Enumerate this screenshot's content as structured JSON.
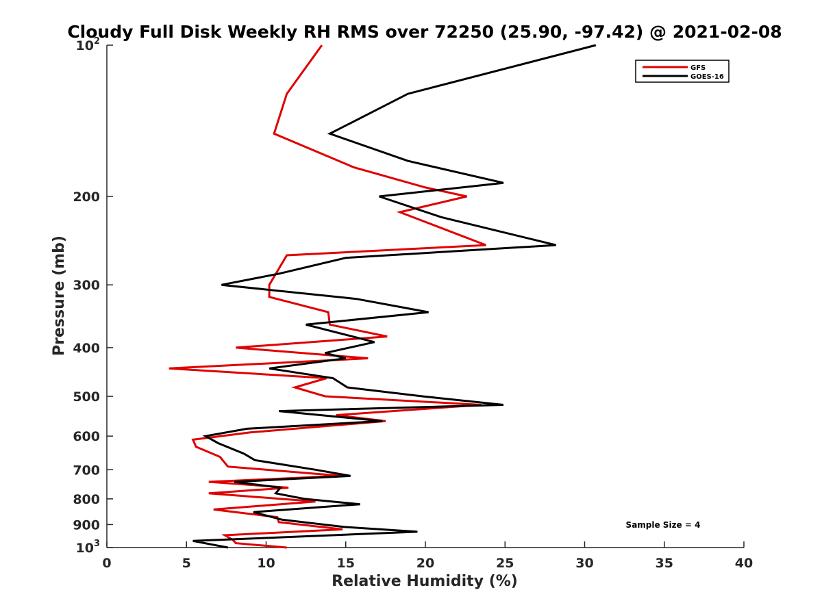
{
  "chart_data": {
    "type": "line",
    "title": "Cloudy Full Disk Weekly RH RMS over 72250 (25.90, -97.42) @ 2021-02-08",
    "xlabel": "Relative Humidity (%)",
    "ylabel": "Pressure (mb)",
    "xlim": [
      0,
      40
    ],
    "ylim": [
      100,
      1000
    ],
    "y_scale": "log",
    "y_reversed": true,
    "x_ticks": [
      0,
      5,
      10,
      15,
      20,
      25,
      30,
      35,
      40
    ],
    "y_ticks": [
      {
        "value": 100,
        "label": "10",
        "sup": "2"
      },
      {
        "value": 200,
        "label": "200",
        "sup": ""
      },
      {
        "value": 300,
        "label": "300",
        "sup": ""
      },
      {
        "value": 400,
        "label": "400",
        "sup": ""
      },
      {
        "value": 500,
        "label": "500",
        "sup": ""
      },
      {
        "value": 600,
        "label": "600",
        "sup": ""
      },
      {
        "value": 700,
        "label": "700",
        "sup": ""
      },
      {
        "value": 800,
        "label": "800",
        "sup": ""
      },
      {
        "value": 900,
        "label": "900",
        "sup": ""
      },
      {
        "value": 1000,
        "label": "10",
        "sup": "3"
      }
    ],
    "grid": false,
    "legend_position": "top-right",
    "annotation": "Sample Size = 4",
    "series": [
      {
        "name": "GFS",
        "color": "#e00000",
        "points": [
          [
            13.5,
            100
          ],
          [
            11.3,
            125
          ],
          [
            10.5,
            150
          ],
          [
            15.5,
            175
          ],
          [
            20.0,
            192
          ],
          [
            22.6,
            200
          ],
          [
            18.4,
            215
          ],
          [
            23.8,
            250
          ],
          [
            11.3,
            262
          ],
          [
            10.2,
            300
          ],
          [
            10.2,
            317
          ],
          [
            13.9,
            340
          ],
          [
            14.0,
            360
          ],
          [
            17.6,
            380
          ],
          [
            8.1,
            400
          ],
          [
            16.4,
            420
          ],
          [
            3.9,
            440
          ],
          [
            13.8,
            460
          ],
          [
            11.8,
            480
          ],
          [
            13.7,
            500
          ],
          [
            23.5,
            520
          ],
          [
            14.4,
            545
          ],
          [
            17.5,
            560
          ],
          [
            9.0,
            590
          ],
          [
            5.4,
            610
          ],
          [
            5.6,
            630
          ],
          [
            7.1,
            660
          ],
          [
            7.6,
            690
          ],
          [
            14.7,
            720
          ],
          [
            6.4,
            740
          ],
          [
            11.4,
            760
          ],
          [
            6.4,
            780
          ],
          [
            13.1,
            810
          ],
          [
            6.7,
            840
          ],
          [
            10.7,
            870
          ],
          [
            10.8,
            890
          ],
          [
            14.8,
            920
          ],
          [
            7.4,
            945
          ],
          [
            7.9,
            965
          ],
          [
            8.1,
            980
          ],
          [
            11.3,
            1000
          ]
        ]
      },
      {
        "name": "GOES-16",
        "color": "#000000",
        "points": [
          [
            30.7,
            100
          ],
          [
            18.9,
            125
          ],
          [
            14.0,
            150
          ],
          [
            18.9,
            170
          ],
          [
            24.9,
            188
          ],
          [
            17.1,
            200
          ],
          [
            21.0,
            220
          ],
          [
            28.2,
            250
          ],
          [
            15.0,
            265
          ],
          [
            10.8,
            285
          ],
          [
            7.2,
            300
          ],
          [
            15.7,
            320
          ],
          [
            20.2,
            340
          ],
          [
            12.5,
            360
          ],
          [
            16.8,
            390
          ],
          [
            13.7,
            410
          ],
          [
            15.0,
            420
          ],
          [
            10.2,
            440
          ],
          [
            14.2,
            460
          ],
          [
            15.1,
            480
          ],
          [
            19.8,
            500
          ],
          [
            24.9,
            520
          ],
          [
            10.8,
            535
          ],
          [
            17.3,
            560
          ],
          [
            8.8,
            580
          ],
          [
            6.2,
            600
          ],
          [
            7.0,
            620
          ],
          [
            8.6,
            650
          ],
          [
            9.3,
            670
          ],
          [
            13.1,
            700
          ],
          [
            15.3,
            720
          ],
          [
            8.0,
            740
          ],
          [
            10.9,
            760
          ],
          [
            10.6,
            780
          ],
          [
            12.4,
            800
          ],
          [
            15.9,
            820
          ],
          [
            9.2,
            850
          ],
          [
            11.0,
            880
          ],
          [
            14.9,
            910
          ],
          [
            19.5,
            930
          ],
          [
            5.4,
            970
          ],
          [
            7.6,
            1000
          ]
        ]
      }
    ]
  }
}
